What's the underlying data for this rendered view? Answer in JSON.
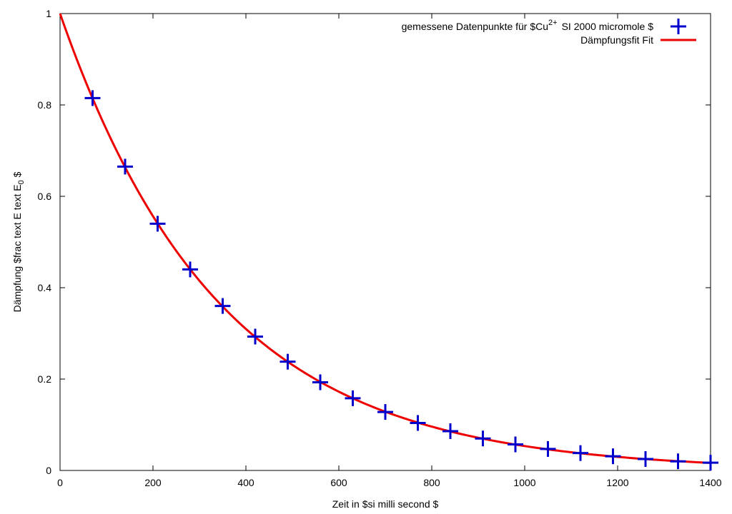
{
  "chart_data": {
    "type": "scatter",
    "xlabel": "Zeit in $si milli second $",
    "ylabel": "Dämpfung $frac text E text E 0 $",
    "xlim": [
      0,
      1400
    ],
    "ylim": [
      0,
      1
    ],
    "x_ticks": [
      0,
      200,
      400,
      600,
      800,
      1000,
      1200,
      1400
    ],
    "y_ticks": [
      0,
      0.2,
      0.4,
      0.6,
      0.8,
      1
    ],
    "x_tick_labels": [
      "0",
      "200",
      "400",
      "600",
      "800",
      "1000",
      "1200",
      "1400"
    ],
    "y_tick_labels": [
      "0",
      "0.2",
      "0.4",
      "0.6",
      "0.8",
      "1"
    ],
    "grid": false,
    "legend_position": "top-right",
    "series": [
      {
        "name": "gemessene Datenpunkte für $Cu 2+ SI 2000 micromole $",
        "legend_main": "gemessene Datenpunkte für $Cu",
        "legend_sup": "2+",
        "legend_rest": "SI 2000 micromole $",
        "marker": "plus",
        "color": "#0000cc",
        "x": [
          70,
          140,
          210,
          280,
          350,
          420,
          490,
          560,
          630,
          700,
          770,
          840,
          910,
          980,
          1050,
          1120,
          1190,
          1260,
          1330,
          1400
        ],
        "y": [
          0.815,
          0.665,
          0.54,
          0.44,
          0.36,
          0.293,
          0.238,
          0.193,
          0.158,
          0.128,
          0.104,
          0.086,
          0.07,
          0.057,
          0.047,
          0.038,
          0.031,
          0.025,
          0.02,
          0.017
        ]
      },
      {
        "name": "Dämpfungsfit Fit",
        "marker": "line",
        "color": "#ee0000",
        "function": "exp(-k*x)",
        "k": 0.00293
      }
    ]
  }
}
